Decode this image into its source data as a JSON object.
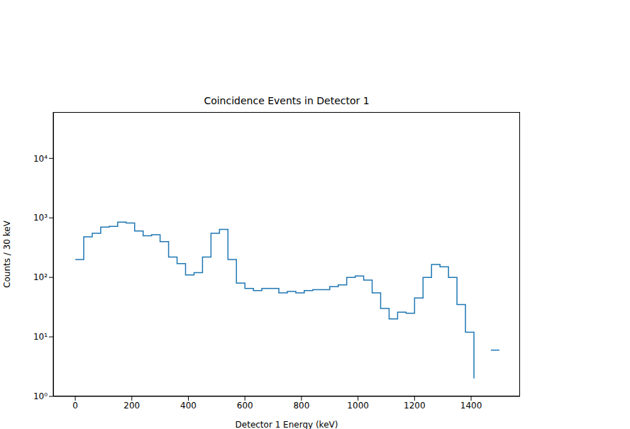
{
  "chart_data": {
    "type": "histogram",
    "title": "Coincidence Events in Detector 1",
    "x_label": "Detector 1 Energy (keV)",
    "y_label": "Counts / 30 keV",
    "bins": [
      0,
      30,
      60,
      90,
      120,
      150,
      180,
      210,
      240,
      270,
      300,
      330,
      360,
      390,
      420,
      450,
      480,
      510,
      540,
      570,
      600,
      630,
      660,
      690,
      720,
      750,
      780,
      810,
      840,
      870,
      900,
      930,
      960,
      990,
      1020,
      1050,
      1080,
      1110,
      1140,
      1170,
      1200,
      1230,
      1260,
      1290,
      1320,
      1350,
      1380,
      1410,
      1440,
      1470,
      1500
    ],
    "counts": [
      200,
      480,
      550,
      700,
      720,
      850,
      820,
      600,
      500,
      520,
      400,
      220,
      170,
      110,
      120,
      220,
      550,
      640,
      200,
      80,
      65,
      60,
      65,
      65,
      55,
      58,
      55,
      60,
      62,
      62,
      70,
      75,
      100,
      105,
      90,
      55,
      30,
      20,
      26,
      25,
      45,
      100,
      165,
      150,
      100,
      35,
      12,
      2,
      0,
      6
    ],
    "color": "#1f77b4",
    "xlim": [
      -78,
      1573
    ],
    "ylim": [
      1,
      60000
    ],
    "xticks": [
      0,
      200,
      400,
      600,
      800,
      1000,
      1200,
      1400
    ],
    "yticks": [
      {
        "value": 1,
        "label": "10⁰"
      },
      {
        "value": 10,
        "label": "10¹"
      },
      {
        "value": 100,
        "label": "10²"
      },
      {
        "value": 1000,
        "label": "10³"
      },
      {
        "value": 10000,
        "label": "10⁴"
      }
    ],
    "log": "y"
  }
}
